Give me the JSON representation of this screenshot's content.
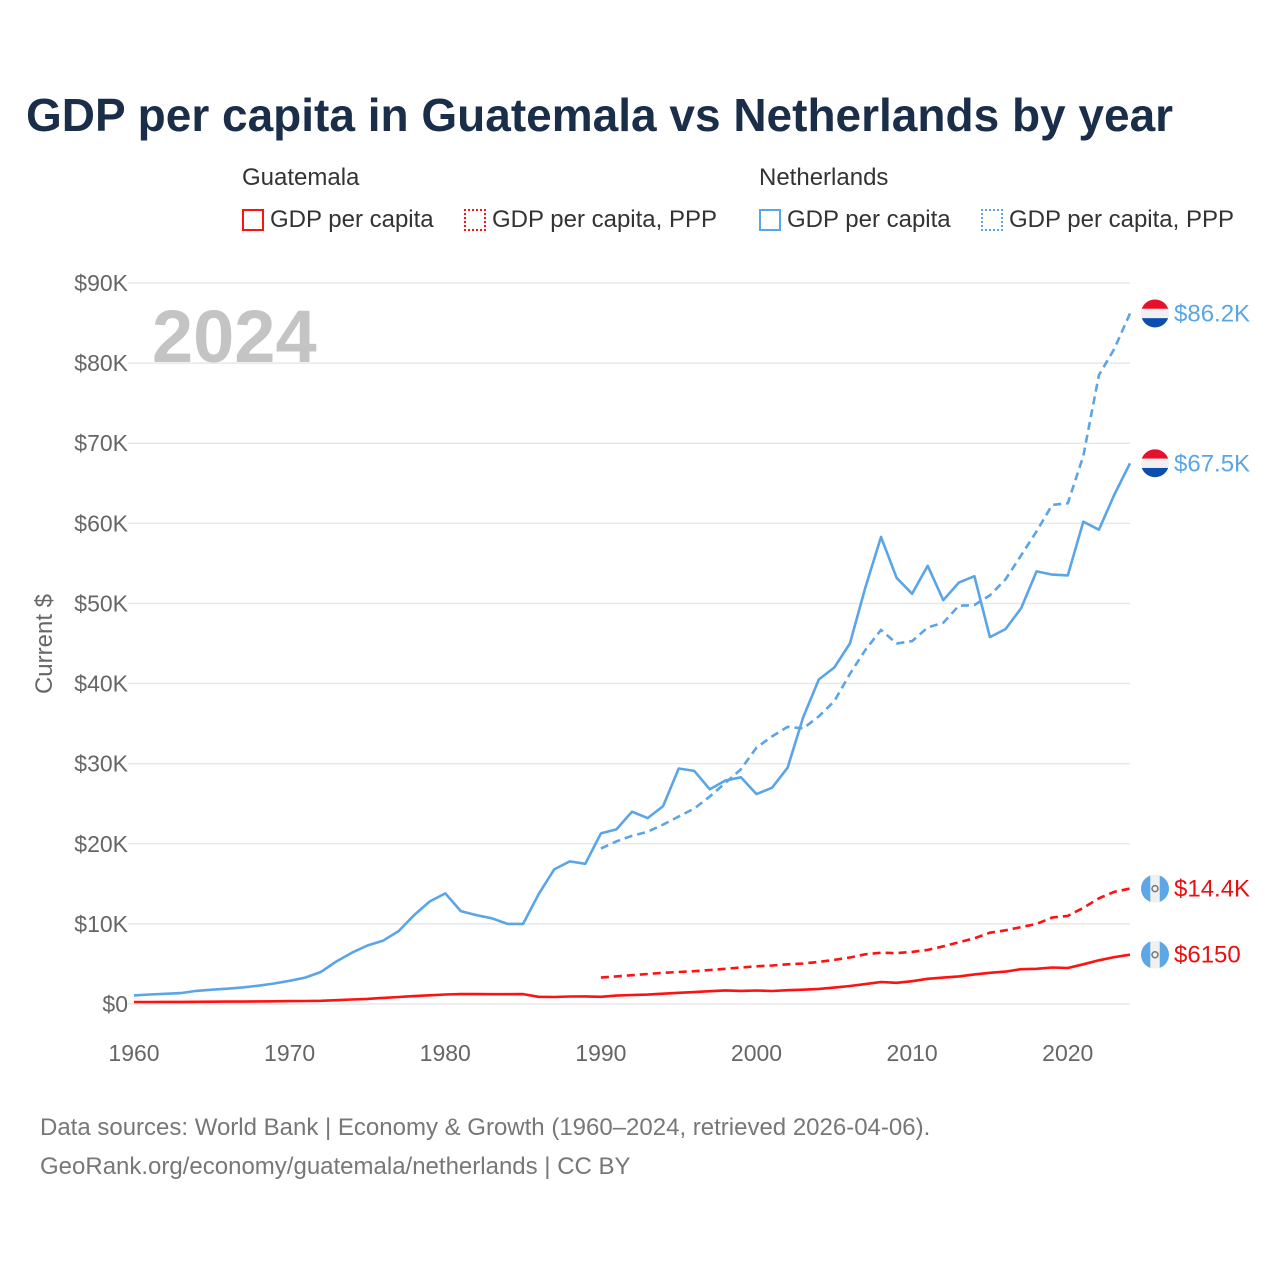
{
  "chart_data": {
    "type": "line",
    "title": "GDP per capita in Guatemala vs Netherlands by year",
    "ylabel": "Current $",
    "xlabel": "",
    "xlim": [
      1960,
      2024
    ],
    "ylim": [
      0,
      90000
    ],
    "x_ticks": [
      "1960",
      "1970",
      "1980",
      "1990",
      "2000",
      "2010",
      "2020"
    ],
    "y_ticks": [
      "$0",
      "$10K",
      "$20K",
      "$30K",
      "$40K",
      "$50K",
      "$60K",
      "$70K",
      "$80K",
      "$90K"
    ],
    "grid": true,
    "year_watermark": "2024",
    "legend": {
      "placement": "top",
      "groups": [
        {
          "name": "Guatemala",
          "items": [
            "GDP per capita",
            "GDP per capita, PPP"
          ]
        },
        {
          "name": "Netherlands",
          "items": [
            "GDP per capita",
            "GDP per capita, PPP"
          ]
        }
      ]
    },
    "series": [
      {
        "name": "Netherlands GDP per capita",
        "country": "Netherlands",
        "color": "#5aa5e8",
        "style": "solid",
        "start": 1960,
        "end_label": "$67.5K",
        "values": [
          1070,
          1180,
          1270,
          1360,
          1630,
          1780,
          1910,
          2070,
          2280,
          2560,
          2900,
          3300,
          4000,
          5300,
          6400,
          7300,
          7900,
          9100,
          11100,
          12800,
          13800,
          11600,
          11100,
          10700,
          10000,
          10000,
          13700,
          16800,
          17800,
          17500,
          21300,
          21800,
          24000,
          23200,
          24700,
          29400,
          29100,
          26800,
          27900,
          28300,
          26200,
          27000,
          29500,
          35800,
          40500,
          42000,
          45000,
          52000,
          58300,
          53200,
          51200,
          54700,
          50400,
          52600,
          53400,
          45800,
          46800,
          49400,
          54000,
          53600,
          53500,
          60200,
          59200,
          63600,
          67500
        ]
      },
      {
        "name": "Netherlands GDP per capita, PPP",
        "country": "Netherlands",
        "color": "#5aa5e8",
        "style": "dashed",
        "start": 1990,
        "end_label": "$86.2K",
        "values": [
          19400,
          20300,
          21000,
          21500,
          22400,
          23400,
          24400,
          25900,
          27600,
          29300,
          32000,
          33400,
          34600,
          34400,
          35900,
          37800,
          41200,
          44200,
          46700,
          45000,
          45300,
          47000,
          47600,
          49700,
          49800,
          51000,
          53000,
          56000,
          59000,
          62300,
          62500,
          68400,
          78500,
          81800,
          86200
        ]
      },
      {
        "name": "Guatemala GDP per capita",
        "country": "Guatemala",
        "color": "#ff1111",
        "style": "solid",
        "start": 1960,
        "end_label": "$6150",
        "values": [
          250,
          255,
          260,
          265,
          275,
          285,
          295,
          305,
          320,
          335,
          360,
          375,
          400,
          470,
          560,
          640,
          760,
          880,
          980,
          1080,
          1180,
          1230,
          1230,
          1220,
          1220,
          1230,
          900,
          880,
          930,
          950,
          900,
          1050,
          1120,
          1170,
          1280,
          1400,
          1480,
          1600,
          1700,
          1640,
          1680,
          1620,
          1720,
          1780,
          1880,
          2050,
          2250,
          2480,
          2750,
          2650,
          2850,
          3150,
          3300,
          3450,
          3700,
          3900,
          4050,
          4350,
          4400,
          4550,
          4500,
          4950,
          5450,
          5850,
          6150
        ]
      },
      {
        "name": "Guatemala GDP per capita, PPP",
        "country": "Guatemala",
        "color": "#ff1111",
        "style": "dashed",
        "start": 1990,
        "end_label": "$14.4K",
        "values": [
          3300,
          3450,
          3600,
          3750,
          3900,
          4000,
          4100,
          4250,
          4400,
          4550,
          4700,
          4800,
          4950,
          5050,
          5250,
          5500,
          5800,
          6200,
          6400,
          6350,
          6500,
          6750,
          7200,
          7700,
          8200,
          8900,
          9200,
          9600,
          10000,
          10800,
          11000,
          12000,
          13200,
          14000,
          14400
        ]
      }
    ]
  },
  "legend_labels": {
    "guatemala": "Guatemala",
    "netherlands": "Netherlands",
    "gdp": "GDP per capita",
    "ppp": "GDP per capita, PPP"
  },
  "source": {
    "line1": "Data sources: World Bank | Economy & Growth (1960–2024, retrieved 2026-04-06).",
    "line2": "GeoRank.org/economy/guatemala/netherlands | CC BY"
  }
}
